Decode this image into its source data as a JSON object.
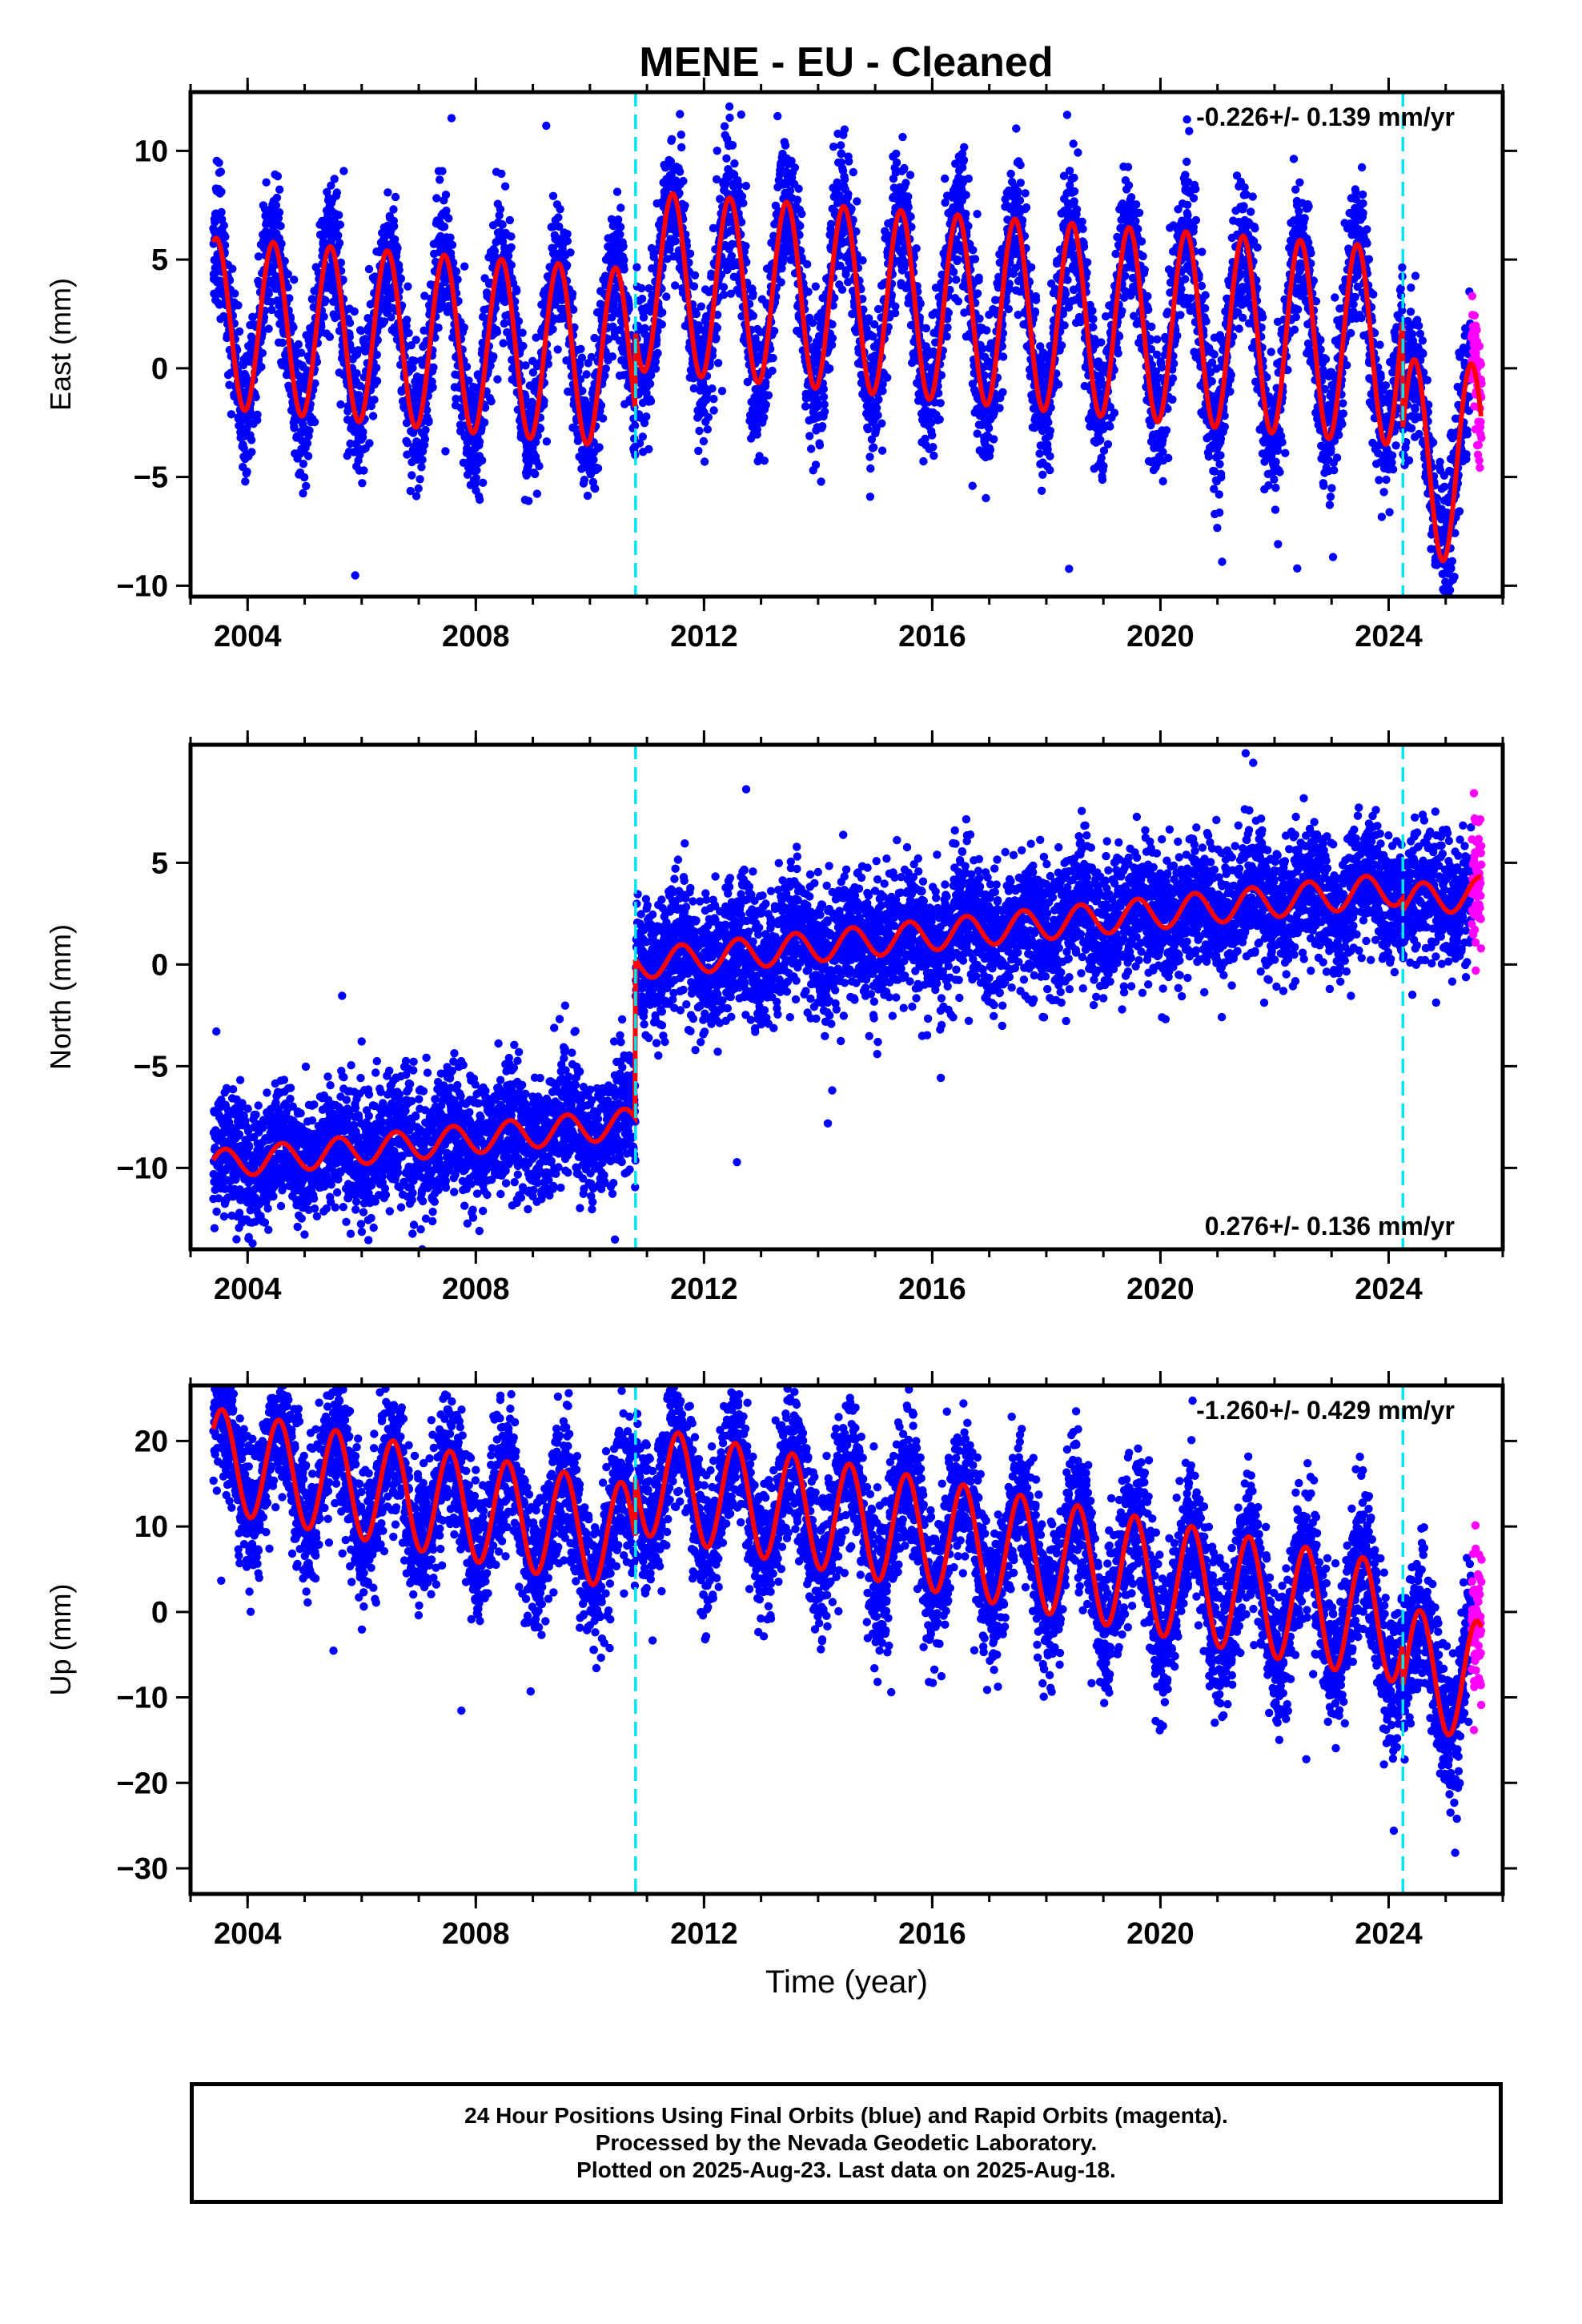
{
  "chart_data": {
    "type": "scatter",
    "title": "MENE  - EU - Cleaned",
    "xlabel": "Time (year)",
    "xlim": [
      2003.0,
      2026.0
    ],
    "x_ticks": [
      2004,
      2008,
      2012,
      2016,
      2020,
      2024
    ],
    "x_tick_labels": [
      "2004",
      "2008",
      "2012",
      "2016",
      "2020",
      "2024"
    ],
    "offset_epochs": [
      2010.8,
      2024.25
    ],
    "colors": {
      "final": "#0000ff",
      "rapid": "#ff00ff",
      "model": "#ff0000",
      "offset": "#00e5ee"
    },
    "series_descriptions": [
      "24 Hour Positions Using Final Orbits (blue)",
      "Rapid Orbits (magenta)"
    ],
    "panels": [
      {
        "ylabel": "East (mm)",
        "ylim": [
          -10.5,
          12.7
        ],
        "y_ticks": [
          -10,
          -5,
          0,
          5,
          10
        ],
        "rate_text": "-0.226+/- 0.139 mm/yr",
        "rate_position": "top-right",
        "model": {
          "seg_starts": [
            2003.4,
            2010.8,
            2024.25
          ],
          "seg_offsets": [
            -0.3,
            3.3,
            -1.8
          ],
          "trend": -0.226,
          "t0": 2014.0,
          "amp_start": 3.9,
          "amp_end": 4.6,
          "phase_year": 2003.45,
          "noise_sd": 1.6
        }
      },
      {
        "ylabel": "North (mm)",
        "ylim": [
          -14.0,
          10.8
        ],
        "y_ticks": [
          -10,
          -5,
          0,
          5
        ],
        "rate_text": "0.276+/- 0.136 mm/yr",
        "rate_position": "bottom-right",
        "model": {
          "seg_starts": [
            2003.4,
            2010.8,
            2024.25
          ],
          "seg_offsets": [
            -6.9,
            0.9,
            0.3
          ],
          "trend": 0.276,
          "t0": 2014.0,
          "amp_start": 0.7,
          "amp_end": 0.8,
          "phase_year": 2003.6,
          "noise_sd": 1.6
        }
      },
      {
        "ylabel": "Up (mm)",
        "ylim": [
          -33.0,
          26.5
        ],
        "y_ticks": [
          -30,
          -20,
          -10,
          0,
          10,
          20
        ],
        "rate_text": "-1.260+/- 0.429 mm/yr",
        "rate_position": "top-right",
        "model": {
          "seg_starts": [
            2003.4,
            2010.8,
            2024.25
          ],
          "seg_offsets": [
            4.5,
            11.5,
            6.5
          ],
          "trend": -1.26,
          "t0": 2014.0,
          "amp_start": 6.0,
          "amp_end": 7.0,
          "phase_year": 2003.55,
          "noise_sd": 4.2
        }
      }
    ]
  },
  "footer": {
    "line1": "24 Hour Positions Using Final Orbits (blue) and Rapid Orbits (magenta).",
    "line2": "Processed by the Nevada Geodetic Laboratory.",
    "line3": "Plotted on 2025-Aug-23. Last data on 2025-Aug-18."
  }
}
